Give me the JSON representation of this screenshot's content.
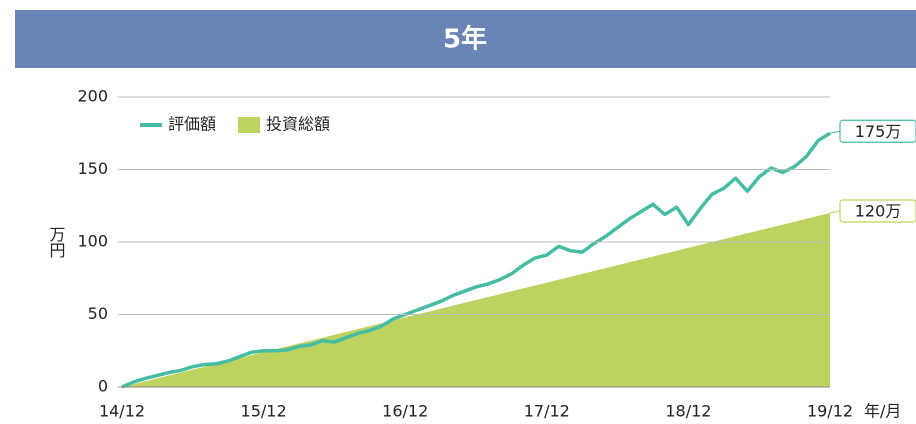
{
  "chart_data": {
    "type": "line",
    "title": "5年",
    "ylabel": "万円",
    "xlabel": "年/月",
    "xlim": [
      0,
      60
    ],
    "xticks": [
      {
        "value": 0,
        "label": "14/12"
      },
      {
        "value": 12,
        "label": "15/12"
      },
      {
        "value": 24,
        "label": "16/12"
      },
      {
        "value": 36,
        "label": "17/12"
      },
      {
        "value": 48,
        "label": "18/12"
      },
      {
        "value": 60,
        "label": "19/12"
      }
    ],
    "ylim": [
      0,
      200
    ],
    "yticks": [
      0,
      50,
      100,
      150,
      200
    ],
    "grid": true,
    "legend": "upper left",
    "x": [
      0,
      1,
      2,
      3,
      4,
      5,
      6,
      7,
      8,
      9,
      10,
      11,
      12,
      13,
      14,
      15,
      16,
      17,
      18,
      19,
      20,
      21,
      22,
      23,
      24,
      25,
      26,
      27,
      28,
      29,
      30,
      31,
      32,
      33,
      34,
      35,
      36,
      37,
      38,
      39,
      40,
      41,
      42,
      43,
      44,
      45,
      46,
      47,
      48,
      49,
      50,
      51,
      52,
      53,
      54,
      55,
      56,
      57,
      58,
      59,
      60
    ],
    "series": [
      {
        "name": "評価額",
        "type": "line",
        "color": "#45bca3",
        "end_label": "175万",
        "values": [
          0,
          3.5,
          6,
          8,
          10,
          11.5,
          14,
          15.5,
          16,
          18,
          21,
          24,
          25,
          25,
          25.5,
          28,
          29,
          32,
          31,
          34,
          37,
          39,
          42,
          47,
          50,
          53,
          56,
          59,
          63,
          66,
          69,
          71,
          74,
          78,
          84,
          89,
          91,
          97,
          94,
          93,
          99,
          104,
          110,
          116,
          121,
          126,
          119,
          124,
          112,
          123,
          133,
          137,
          144,
          135,
          145,
          151,
          148,
          152,
          159,
          170,
          175
        ]
      },
      {
        "name": "投資総額",
        "type": "area",
        "color": "#bdd35f",
        "end_label": "120万",
        "values": [
          0,
          2,
          4,
          6,
          8,
          10,
          12,
          14,
          16,
          18,
          20,
          22,
          24,
          26,
          28,
          30,
          32,
          34,
          36,
          38,
          40,
          42,
          44,
          46,
          48,
          50,
          52,
          54,
          56,
          58,
          60,
          62,
          64,
          66,
          68,
          70,
          72,
          74,
          76,
          78,
          80,
          82,
          84,
          86,
          88,
          90,
          92,
          94,
          96,
          98,
          100,
          102,
          104,
          106,
          108,
          110,
          112,
          114,
          116,
          118,
          120
        ]
      }
    ]
  }
}
